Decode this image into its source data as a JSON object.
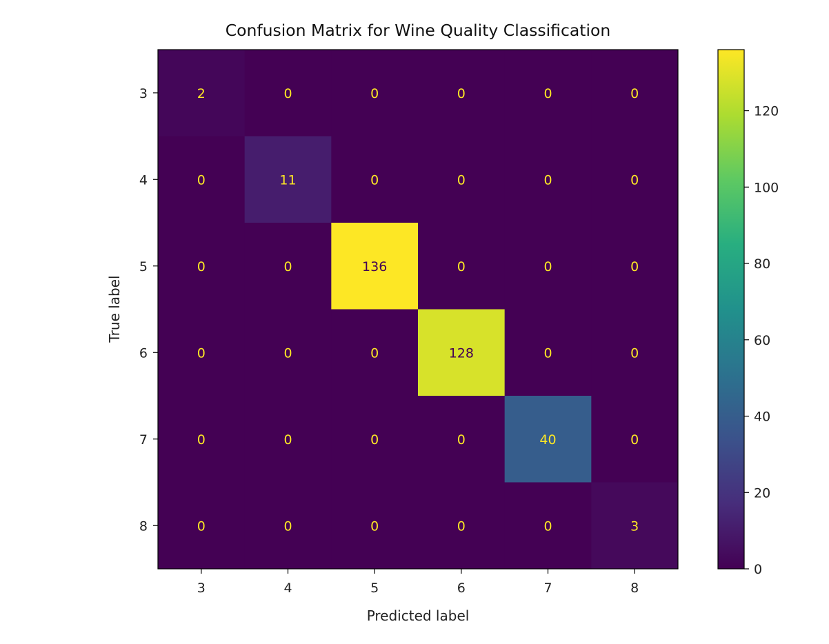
{
  "chart_data": {
    "type": "heatmap",
    "title": "Confusion Matrix for Wine Quality Classification",
    "xlabel": "Predicted label",
    "ylabel": "True label",
    "x_categories": [
      "3",
      "4",
      "5",
      "6",
      "7",
      "8"
    ],
    "y_categories": [
      "3",
      "4",
      "5",
      "6",
      "7",
      "8"
    ],
    "values": [
      [
        2,
        0,
        0,
        0,
        0,
        0
      ],
      [
        0,
        11,
        0,
        0,
        0,
        0
      ],
      [
        0,
        0,
        136,
        0,
        0,
        0
      ],
      [
        0,
        0,
        0,
        128,
        0,
        0
      ],
      [
        0,
        0,
        0,
        0,
        40,
        0
      ],
      [
        0,
        0,
        0,
        0,
        0,
        3
      ]
    ],
    "colormap": "viridis",
    "colorbar": {
      "range": [
        0,
        136
      ],
      "ticks": [
        0,
        20,
        40,
        60,
        80,
        100,
        120
      ]
    },
    "grid": false
  }
}
